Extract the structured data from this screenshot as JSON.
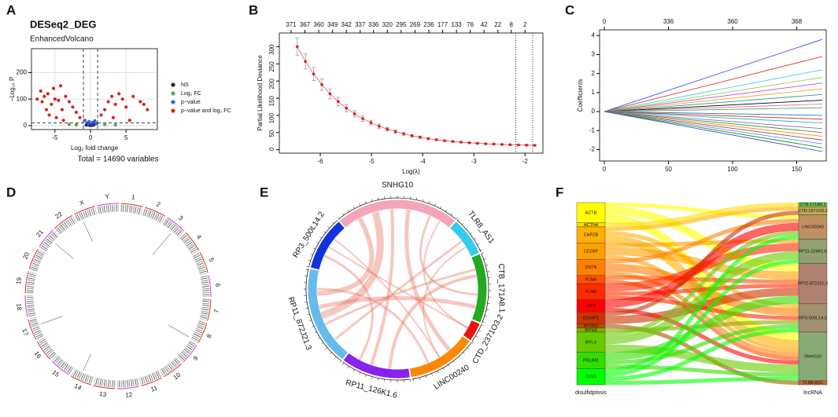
{
  "panel_labels": [
    "A",
    "B",
    "C",
    "D",
    "E",
    "F"
  ],
  "chart_data": [
    {
      "type": "scatter",
      "title": "DESeq2_DEG",
      "subtitle": "EnhancedVolcano",
      "x_label": "Log₂ fold change",
      "y_label": "−Log₁₀ P",
      "caption": "Total = 14690 variables",
      "xlim": [
        -8.3,
        9.4
      ],
      "ylim": [
        -15,
        290
      ],
      "xticks": [
        -5,
        0,
        5
      ],
      "yticks": [
        0,
        100,
        200
      ],
      "grid": true,
      "legend": "right",
      "x_cutoffs": [
        -1,
        1
      ],
      "y_cutoff": 10,
      "series": [
        {
          "name": "NS",
          "color": "#000000",
          "x": [
            -0.6,
            0.2,
            0.5,
            -0.1
          ],
          "values": [
            2,
            1,
            3,
            1
          ]
        },
        {
          "name": "Log₂ FC",
          "color": "#2e9e2e",
          "x": [
            -2,
            -3,
            2,
            3.5
          ],
          "values": [
            3,
            5,
            4,
            2
          ]
        },
        {
          "name": "p−value",
          "color": "#1e3fd0",
          "x": [
            -0.8,
            -0.5,
            -0.2,
            0,
            0.3,
            0.6,
            0.9,
            -0.4,
            0.4
          ],
          "values": [
            20,
            10,
            15,
            5,
            12,
            18,
            8,
            3,
            4
          ]
        },
        {
          "name": "p−value and log₂ FC",
          "color": "#cc0000",
          "x": [
            -7.5,
            -7,
            -6.8,
            -6.5,
            -6,
            -5.5,
            -5.2,
            -5,
            -4.5,
            -4.2,
            -4,
            -3.5,
            -3,
            -2.5,
            -2,
            -1.5,
            -6.2,
            -5.8,
            -4.8,
            -3.8,
            1.5,
            2,
            2.5,
            3,
            3.5,
            4,
            4.5,
            5,
            6,
            7,
            7.5,
            8,
            3.2,
            5.5
          ],
          "values": [
            100,
            130,
            90,
            110,
            120,
            80,
            140,
            100,
            95,
            150,
            60,
            110,
            90,
            70,
            50,
            30,
            60,
            40,
            30,
            20,
            40,
            60,
            90,
            110,
            80,
            120,
            100,
            70,
            110,
            90,
            80,
            60,
            30,
            20
          ]
        }
      ]
    },
    {
      "type": "line",
      "x_label": "Log(λ)",
      "y_label": "Partial Likelihood Deviance",
      "xlim": [
        -6.8,
        -1.65
      ],
      "ylim": [
        -10,
        340
      ],
      "xticks": [
        -6,
        -5,
        -4,
        -3,
        -2
      ],
      "yticks": [
        0,
        50,
        100,
        150,
        200,
        250,
        300
      ],
      "x2ticks": [
        {
          "value": -6.57,
          "label": "371"
        },
        {
          "value": -6.3,
          "label": "367"
        },
        {
          "value": -6.03,
          "label": "360"
        },
        {
          "value": -5.76,
          "label": "349"
        },
        {
          "value": -5.49,
          "label": "342"
        },
        {
          "value": -5.22,
          "label": "337"
        },
        {
          "value": -4.96,
          "label": "336"
        },
        {
          "value": -4.69,
          "label": "320"
        },
        {
          "value": -4.42,
          "label": "295"
        },
        {
          "value": -4.15,
          "label": "269"
        },
        {
          "value": -3.88,
          "label": "236"
        },
        {
          "value": -3.61,
          "label": "177"
        },
        {
          "value": -3.34,
          "label": "133"
        },
        {
          "value": -3.07,
          "label": "76"
        },
        {
          "value": -2.8,
          "label": "42"
        },
        {
          "value": -2.53,
          "label": "22"
        },
        {
          "value": -2.27,
          "label": "8"
        },
        {
          "value": -2.0,
          "label": "2"
        }
      ],
      "vlines": [
        -2.18,
        -1.85
      ],
      "markers": true,
      "error_color": "#999999",
      "x": [
        -6.45,
        -6.29,
        -6.13,
        -5.97,
        -5.81,
        -5.65,
        -5.49,
        -5.33,
        -5.17,
        -5.01,
        -4.85,
        -4.69,
        -4.53,
        -4.37,
        -4.21,
        -4.05,
        -3.89,
        -3.73,
        -3.57,
        -3.41,
        -3.25,
        -3.09,
        -2.93,
        -2.77,
        -2.61,
        -2.45,
        -2.29,
        -2.13,
        -1.97,
        -1.81
      ],
      "series": [
        {
          "color": "#e41a1c",
          "values": [
            300,
            257.1,
            220.5,
            189.5,
            162.8,
            140.2,
            121.1,
            104.5,
            90.6,
            78.7,
            68.6,
            59.9,
            52.6,
            46.3,
            40.7,
            36.4,
            32.3,
            29.1,
            26.2,
            23.9,
            21.9,
            20.2,
            18.7,
            17.3,
            16.4,
            15.2,
            14.6,
            13.8,
            13.2,
            12.8
          ],
          "errors": [
            26,
            22.3,
            19.2,
            16.5,
            14.2,
            12.2,
            10.6,
            9.2,
            8.0,
            6.9,
            6.1,
            5.3,
            4.7,
            4.1,
            3.7,
            3.3,
            2.9,
            2.7,
            2.4,
            2.2,
            2.0,
            1.9,
            1.8,
            1.6,
            1.6,
            1.5,
            1.4,
            1.3,
            1.3,
            1.2
          ]
        }
      ]
    },
    {
      "type": "line",
      "y_label": "Coefficients",
      "xlim": [
        -3.7,
        173
      ],
      "ylim": [
        -2.6,
        4.3
      ],
      "xticks": [
        0,
        50,
        100,
        150
      ],
      "yticks": [
        -2,
        -1,
        0,
        1,
        2,
        3,
        4
      ],
      "x2ticks": [
        {
          "value": 0,
          "label": "0"
        },
        {
          "value": 50,
          "label": "336"
        },
        {
          "value": 100,
          "label": "360"
        },
        {
          "value": 150,
          "label": "368"
        }
      ],
      "x": [
        0,
        170
      ],
      "series": [
        {
          "color": "#3b4cf0",
          "values": [
            0,
            3.8
          ]
        },
        {
          "color": "#e8322a",
          "values": [
            0,
            2.9
          ]
        },
        {
          "color": "#33d6e0",
          "values": [
            0,
            2.2
          ]
        },
        {
          "color": "#8fd14f",
          "values": [
            0,
            1.8
          ]
        },
        {
          "color": "#c04ad6",
          "values": [
            0,
            1.5
          ]
        },
        {
          "color": "#ff9f1c",
          "values": [
            0,
            1.2
          ]
        },
        {
          "color": "#2a9d8f",
          "values": [
            0,
            0.9
          ]
        },
        {
          "color": "#000000",
          "values": [
            0,
            0.6
          ]
        },
        {
          "color": "#e76fbf",
          "values": [
            0,
            0.4
          ]
        },
        {
          "color": "#4caf50",
          "values": [
            0,
            0.2
          ]
        },
        {
          "color": "#1f77b4",
          "values": [
            0,
            -0.2
          ]
        },
        {
          "color": "#d62728",
          "values": [
            0,
            -0.4
          ]
        },
        {
          "color": "#17becf",
          "values": [
            0,
            -0.6
          ]
        },
        {
          "color": "#9467bd",
          "values": [
            0,
            -0.9
          ]
        },
        {
          "color": "#2ca02c",
          "values": [
            0,
            -1.1
          ]
        },
        {
          "color": "#ff7f0e",
          "values": [
            0,
            -1.3
          ]
        },
        {
          "color": "#8c564b",
          "values": [
            0,
            -1.5
          ]
        },
        {
          "color": "#7f7fff",
          "values": [
            0,
            -1.7
          ]
        },
        {
          "color": "#00a000",
          "values": [
            0,
            -1.9
          ]
        },
        {
          "color": "#5050d0",
          "values": [
            0,
            -2.1
          ]
        }
      ]
    }
  ],
  "diagrams": {
    "circos": {
      "chromosomes": [
        "1",
        "2",
        "3",
        "4",
        "5",
        "6",
        "7",
        "8",
        "9",
        "10",
        "11",
        "12",
        "13",
        "14",
        "15",
        "16",
        "17",
        "18",
        "19",
        "20",
        "21",
        "22",
        "X",
        "Y"
      ]
    },
    "chord": {
      "segments": [
        {
          "name": "SNHG10",
          "color": "#f4a6b8",
          "size": 80
        },
        {
          "name": "TLR8_AS1",
          "color": "#33ccee",
          "size": 25
        },
        {
          "name": "CTB_171A8.1",
          "color": "#22aa22",
          "size": 45
        },
        {
          "name": "CTD_2371O3.2",
          "color": "#ee1111",
          "size": 12
        },
        {
          "name": "LINC00240",
          "color": "#ff8800",
          "size": 45
        },
        {
          "name": "RP11_126K1.6",
          "color": "#8822ee",
          "size": 45
        },
        {
          "name": "RP11_872J21.3",
          "color": "#66bbee",
          "size": 65
        },
        {
          "name": "RP3_500L14.2",
          "color": "#1133dd",
          "size": 35
        }
      ]
    },
    "sankey": {
      "left_title": "disulfidptosis",
      "right_title": "lncRNA",
      "left": [
        {
          "name": "ACTB",
          "color": "#ffff00",
          "value": 5
        },
        {
          "name": "ACTN4",
          "color": "#ffdd00",
          "value": 1
        },
        {
          "name": "CAPZB",
          "color": "#ffb000",
          "value": 4
        },
        {
          "name": "CD2AP",
          "color": "#ff9f00",
          "value": 4
        },
        {
          "name": "DSTN",
          "color": "#ff8000",
          "value": 4
        },
        {
          "name": "FLNA",
          "color": "#ff5000",
          "value": 2
        },
        {
          "name": "FLNB",
          "color": "#ff2a00",
          "value": 4
        },
        {
          "name": "INF2",
          "color": "#ff0000",
          "value": 3
        },
        {
          "name": "IQGAP1",
          "color": "#cc3300",
          "value": 3
        },
        {
          "name": "MYH10",
          "color": "#aa5500",
          "value": 1
        },
        {
          "name": "MYH9",
          "color": "#88aa00",
          "value": 1
        },
        {
          "name": "MYL6",
          "color": "#66cc00",
          "value": 5
        },
        {
          "name": "PDLIM1",
          "color": "#33dd00",
          "value": 4
        },
        {
          "name": "TLN1",
          "color": "#00ff00",
          "value": 4
        }
      ],
      "right": [
        {
          "name": "CTB-171A8.1",
          "color": "#66cc44",
          "value": 1
        },
        {
          "name": "CTD-2371O3.2",
          "color": "#bbaa55",
          "value": 2
        },
        {
          "name": "LINC00240",
          "color": "#c09060",
          "value": 6
        },
        {
          "name": "RP11-126K1.6",
          "color": "#90a070",
          "value": 6
        },
        {
          "name": "RP11-872J21.3",
          "color": "#b08070",
          "value": 10
        },
        {
          "name": "RP3-500L14.2",
          "color": "#a09070",
          "value": 7
        },
        {
          "name": "SNHG10",
          "color": "#88aa77",
          "value": 12
        },
        {
          "name": "TLR8-AS1",
          "color": "#cc6633",
          "value": 1
        }
      ],
      "links": [
        {
          "source": 0,
          "target": 2,
          "value": 1
        },
        {
          "source": 0,
          "target": 4,
          "value": 2
        },
        {
          "source": 0,
          "target": 6,
          "value": 2
        },
        {
          "source": 1,
          "target": 0,
          "value": 1
        },
        {
          "source": 2,
          "target": 1,
          "value": 1
        },
        {
          "source": 2,
          "target": 5,
          "value": 1
        },
        {
          "source": 2,
          "target": 6,
          "value": 2
        },
        {
          "source": 3,
          "target": 3,
          "value": 1
        },
        {
          "source": 3,
          "target": 4,
          "value": 2
        },
        {
          "source": 3,
          "target": 6,
          "value": 1
        },
        {
          "source": 4,
          "target": 2,
          "value": 1
        },
        {
          "source": 4,
          "target": 5,
          "value": 2
        },
        {
          "source": 4,
          "target": 6,
          "value": 1
        },
        {
          "source": 5,
          "target": 4,
          "value": 1
        },
        {
          "source": 5,
          "target": 6,
          "value": 1
        },
        {
          "source": 6,
          "target": 3,
          "value": 2
        },
        {
          "source": 6,
          "target": 4,
          "value": 1
        },
        {
          "source": 6,
          "target": 5,
          "value": 1
        },
        {
          "source": 7,
          "target": 2,
          "value": 2
        },
        {
          "source": 7,
          "target": 6,
          "value": 1
        },
        {
          "source": 8,
          "target": 1,
          "value": 1
        },
        {
          "source": 8,
          "target": 4,
          "value": 2
        },
        {
          "source": 9,
          "target": 7,
          "value": 1
        },
        {
          "source": 10,
          "target": 5,
          "value": 1
        },
        {
          "source": 11,
          "target": 2,
          "value": 1
        },
        {
          "source": 11,
          "target": 3,
          "value": 2
        },
        {
          "source": 11,
          "target": 6,
          "value": 2
        },
        {
          "source": 12,
          "target": 4,
          "value": 2
        },
        {
          "source": 12,
          "target": 5,
          "value": 1
        },
        {
          "source": 12,
          "target": 6,
          "value": 1
        },
        {
          "source": 13,
          "target": 2,
          "value": 1
        },
        {
          "source": 13,
          "target": 3,
          "value": 1
        },
        {
          "source": 13,
          "target": 5,
          "value": 1
        },
        {
          "source": 13,
          "target": 6,
          "value": 1
        }
      ]
    }
  }
}
